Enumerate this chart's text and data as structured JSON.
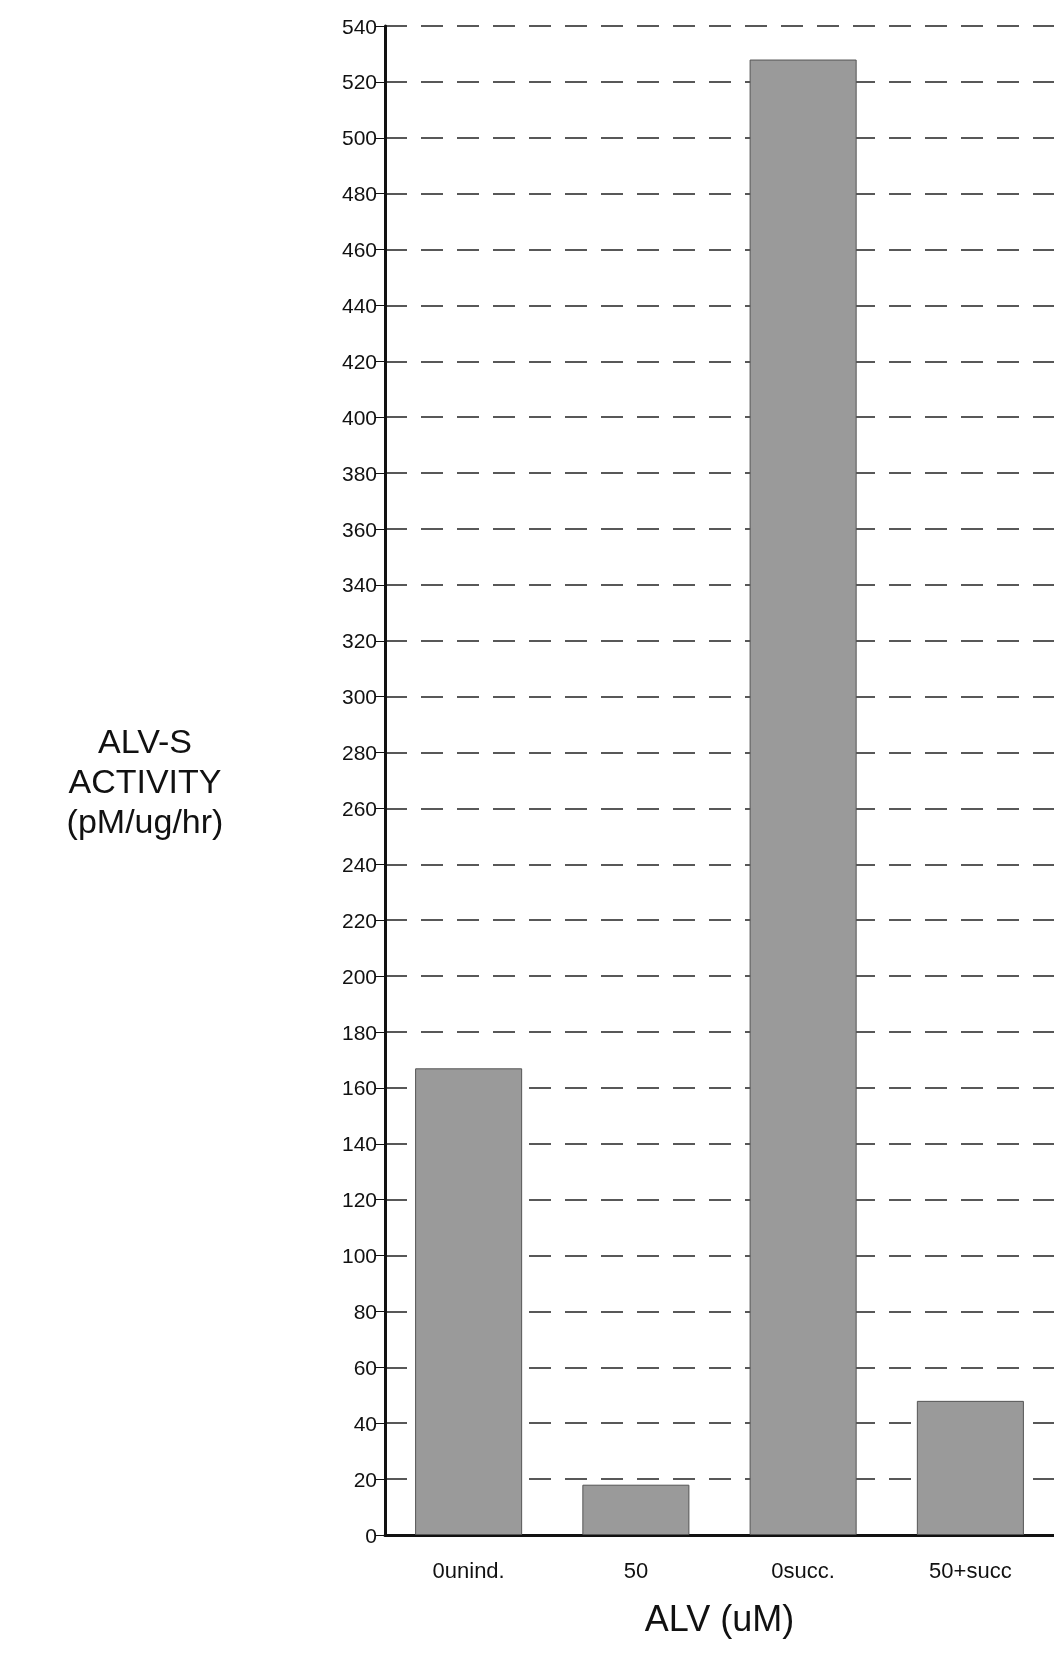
{
  "chart_data": {
    "type": "bar",
    "xlabel": "ALV (uM)",
    "ylabel": "ALV-S\nACTIVITY\n(pM/ug/hr)",
    "categories": [
      "0unind.",
      "50",
      "0succ.",
      "50+succ"
    ],
    "values": [
      167,
      18,
      528,
      48
    ],
    "color": "#9a9a9a",
    "ylim": [
      0,
      540
    ],
    "yticks": [
      0,
      20,
      40,
      60,
      80,
      100,
      120,
      140,
      160,
      180,
      200,
      220,
      240,
      260,
      280,
      300,
      320,
      340,
      360,
      380,
      400,
      420,
      440,
      460,
      480,
      500,
      520,
      540
    ],
    "grid": "y"
  }
}
